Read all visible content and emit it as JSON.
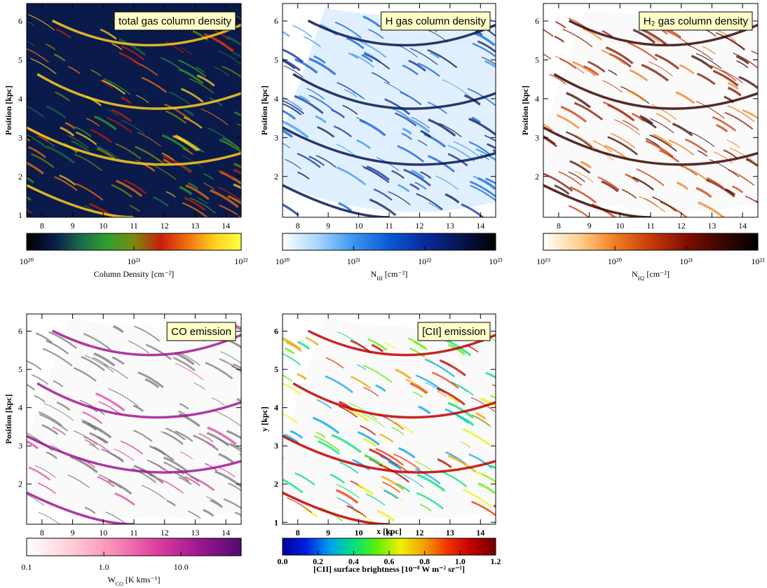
{
  "chart_data": [
    {
      "type": "image",
      "title": "total gas column density",
      "ylabel": "Position [kpc]",
      "xlim": [
        7.5,
        14.5
      ],
      "ylim": [
        0.95,
        6.45
      ],
      "xticks": [
        8,
        9,
        10,
        11,
        12,
        13,
        14
      ],
      "yticks": [
        1,
        2,
        3,
        4,
        5,
        6
      ],
      "colorbar": {
        "label": [
          "Column Density [cm⁻²]"
        ],
        "log": true,
        "lim": [
          1e+20,
          1e+22
        ],
        "ticks": [
          {
            "value": 1e+20,
            "label": "10²⁰"
          },
          {
            "value": 1e+21,
            "label": "10²¹"
          },
          {
            "value": 1e+22,
            "label": "10²²"
          }
        ],
        "colors": [
          "#000000",
          "#0a1a4a",
          "#1a6a4a",
          "#2ea02e",
          "#7a8a10",
          "#c81e0a",
          "#f07010",
          "#ffd020",
          "#ffff40"
        ]
      }
    },
    {
      "type": "image",
      "title": "H gas column density",
      "ylabel": "Position [kpc]",
      "xlim": [
        7.5,
        14.5
      ],
      "ylim": [
        0.95,
        6.45
      ],
      "xticks": [
        8,
        9,
        10,
        11,
        12,
        13,
        14
      ],
      "yticks": [
        2,
        3,
        4,
        5,
        6
      ],
      "colorbar": {
        "label": [
          "N",
          "HI",
          " [cm⁻²]"
        ],
        "log": true,
        "lim": [
          1e+20,
          1e+23
        ],
        "ticks": [
          {
            "value": 1e+20,
            "label": "10²⁰"
          },
          {
            "value": 1e+21,
            "label": "10²¹"
          },
          {
            "value": 1e+22,
            "label": "10²²"
          },
          {
            "value": 1e+23,
            "label": "10²³"
          }
        ],
        "colors": [
          "#ffffff",
          "#a8d4ff",
          "#3a96f0",
          "#0a5ad8",
          "#0a2a9a",
          "#061650",
          "#000000"
        ]
      }
    },
    {
      "type": "image",
      "title": "H₂ gas column density",
      "ylabel": "Position [kpc]",
      "xlim": [
        7.5,
        14.5
      ],
      "ylim": [
        0.95,
        6.45
      ],
      "xticks": [
        8,
        9,
        10,
        11,
        12,
        13,
        14
      ],
      "yticks": [
        2,
        3,
        4,
        5,
        6
      ],
      "colorbar": {
        "label": [
          "N",
          "H2",
          " [cm⁻²]"
        ],
        "log": true,
        "lim": [
          1e+19,
          1e+22
        ],
        "ticks": [
          {
            "value": 1e+19,
            "label": "10¹⁹"
          },
          {
            "value": 1e+20,
            "label": "10²⁰"
          },
          {
            "value": 1e+21,
            "label": "10²¹"
          },
          {
            "value": 1e+22,
            "label": "10²²"
          }
        ],
        "colors": [
          "#ffffff",
          "#ffd090",
          "#f08020",
          "#c83a0a",
          "#801000",
          "#3a0500",
          "#000000"
        ]
      }
    },
    {
      "type": "image",
      "title": "CO emission",
      "ylabel": "Position [kpc]",
      "xlim": [
        7.5,
        14.5
      ],
      "ylim": [
        0.95,
        6.45
      ],
      "xticks": [
        8,
        9,
        10,
        11,
        12,
        13,
        14
      ],
      "yticks": [
        2,
        3,
        4,
        5,
        6
      ],
      "colorbar": {
        "label": [
          "W",
          "CO",
          " [K kms⁻¹]"
        ],
        "log": true,
        "lim": [
          0.1,
          60
        ],
        "ticks": [
          0.1,
          {
            "value": 1,
            "label": "1.0"
          },
          {
            "value": 10,
            "label": "10.0"
          }
        ],
        "colors": [
          "#ffffff",
          "#ffd0d8",
          "#f890b8",
          "#e040a0",
          "#a01890",
          "#500a70"
        ]
      }
    },
    {
      "type": "image",
      "title": "[CII] emission",
      "xlabel": "x [kpc]",
      "ylabel": "y [kpc]",
      "xlim": [
        7.5,
        14.5
      ],
      "ylim": [
        0.95,
        6.45
      ],
      "xticks": [
        8,
        9,
        10,
        11,
        12,
        13,
        14
      ],
      "yticks": [
        1,
        2,
        3,
        4,
        5,
        6
      ],
      "colorbar": {
        "label": [
          "[CII] surface brightness [10⁻⁸ W m⁻² sr⁻¹]"
        ],
        "log": false,
        "lim": [
          0,
          1.2
        ],
        "ticks": [
          {
            "value": 0,
            "label": "0.0"
          },
          0.2,
          0.4,
          0.6,
          0.8,
          {
            "value": 1,
            "label": "1.0"
          },
          1.2
        ],
        "colors": [
          "#0000a0",
          "#0020e0",
          "#00a0f0",
          "#00e080",
          "#60f000",
          "#f0f000",
          "#f0a000",
          "#f03000",
          "#c00000",
          "#700000"
        ]
      }
    }
  ]
}
